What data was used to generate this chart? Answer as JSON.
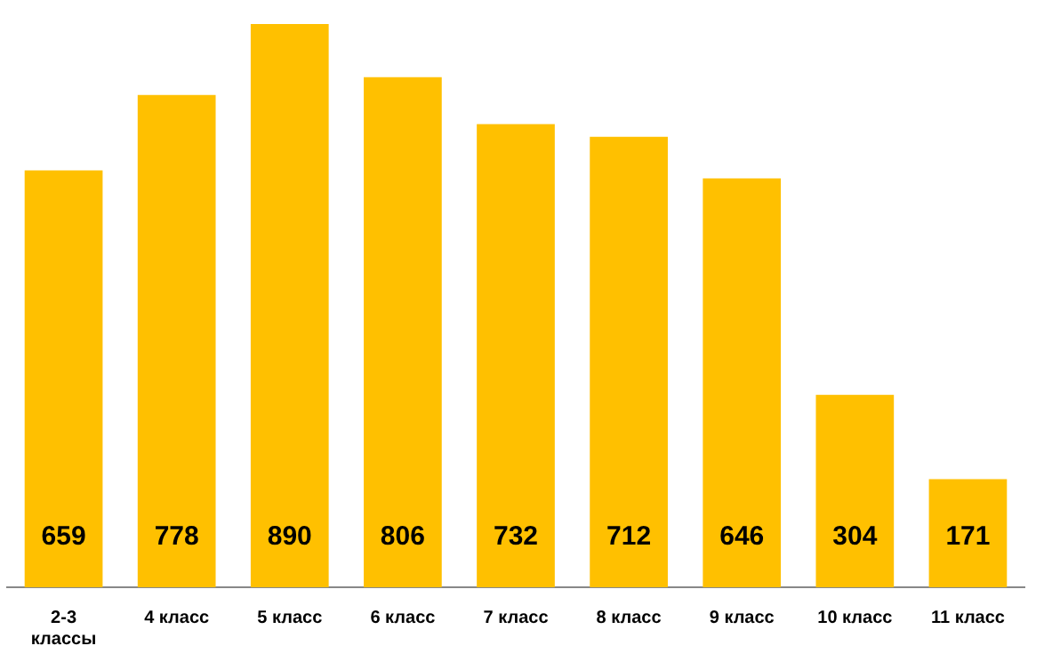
{
  "chart_data": {
    "type": "bar",
    "categories": [
      "2-3 классы",
      "4 класс",
      "5 класс",
      "6 класс",
      "7 класс",
      "8 класс",
      "9 класс",
      "10 класс",
      "11 класс"
    ],
    "values": [
      659,
      778,
      890,
      806,
      732,
      712,
      646,
      304,
      171
    ],
    "color": "#ffc000",
    "data_labels": true,
    "grid": false,
    "legend": false,
    "tick_labels": "x"
  }
}
